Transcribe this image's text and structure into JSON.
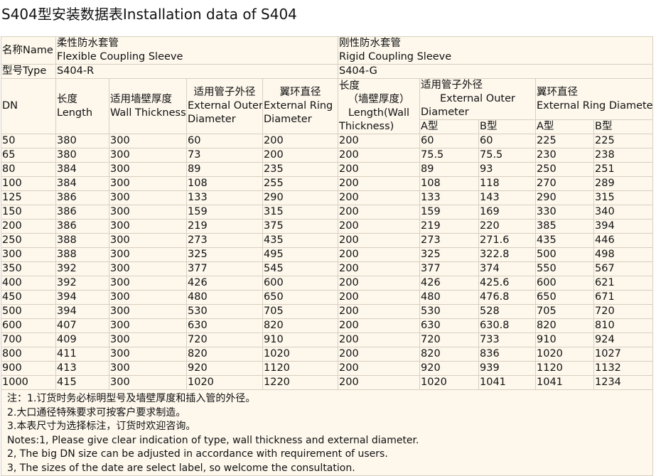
{
  "title": "S404型安装数据表Installation data of S404",
  "header": {
    "name_label": "名称Name",
    "flexible_cn": "柔性防水套管",
    "flexible_en": "Flexible Coupling Sleeve",
    "rigid_cn": "刚性防水套管",
    "rigid_en": "Rigid Coupling Sleeve",
    "type_label": "型号Type",
    "type_r": "S404-R",
    "type_g": "S404-G",
    "dn": "DN",
    "length_cn": "长度",
    "length_en": "Length",
    "wall_cn": "适用墙壁厚度",
    "wall_en": "Wall Thickness",
    "outer_cn": "适用管子外径",
    "outer_en1": "External Outer",
    "outer_en2": "Diameter",
    "ring_cn": "翼环直径",
    "ring_en1": "External Ring",
    "ring_en2": "Diameter",
    "g_length_1": "长度",
    "g_length_2": "（墙壁厚度）",
    "g_length_3": "Length(Wall",
    "g_length_4": "Thickness)",
    "g_outer_cn": "适用管子外径",
    "g_outer_en1": "External Outer",
    "g_outer_en2": "Diameter",
    "g_ring_cn": "翼环直径",
    "g_ring_en": "External Ring Diameter",
    "type_a": "A型",
    "type_b": "B型"
  },
  "rows": [
    [
      "50",
      "380",
      "300",
      "60",
      "200",
      "200",
      "60",
      "60",
      "225",
      "225"
    ],
    [
      "65",
      "380",
      "300",
      "73",
      "200",
      "200",
      "75.5",
      "75.5",
      "230",
      "238"
    ],
    [
      "80",
      "384",
      "300",
      "89",
      "235",
      "200",
      "89",
      "93",
      "250",
      "251"
    ],
    [
      "100",
      "384",
      "300",
      "108",
      "255",
      "200",
      "108",
      "118",
      "270",
      "289"
    ],
    [
      "125",
      "386",
      "300",
      "133",
      "290",
      "200",
      "133",
      "143",
      "290",
      "315"
    ],
    [
      "150",
      "386",
      "300",
      "159",
      "315",
      "200",
      "159",
      "169",
      "330",
      "340"
    ],
    [
      "200",
      "386",
      "300",
      "219",
      "375",
      "200",
      "219",
      "220",
      "385",
      "394"
    ],
    [
      "250",
      "388",
      "300",
      "273",
      "435",
      "200",
      "273",
      "271.6",
      "435",
      "446"
    ],
    [
      "300",
      "388",
      "300",
      "325",
      "495",
      "200",
      "325",
      "322.8",
      "500",
      "498"
    ],
    [
      "350",
      "392",
      "300",
      "377",
      "545",
      "200",
      "377",
      "374",
      "550",
      "567"
    ],
    [
      "400",
      "392",
      "300",
      "426",
      "600",
      "200",
      "426",
      "425.6",
      "600",
      "621"
    ],
    [
      "450",
      "394",
      "300",
      "480",
      "650",
      "200",
      "480",
      "476.8",
      "650",
      "671"
    ],
    [
      "500",
      "394",
      "300",
      "530",
      "705",
      "200",
      "530",
      "528",
      "705",
      "720"
    ],
    [
      "600",
      "407",
      "300",
      "630",
      "820",
      "200",
      "630",
      "630.8",
      "820",
      "810"
    ],
    [
      "700",
      "409",
      "300",
      "720",
      "910",
      "200",
      "720",
      "733",
      "910",
      "924"
    ],
    [
      "800",
      "411",
      "300",
      "820",
      "1020",
      "200",
      "820",
      "836",
      "1020",
      "1027"
    ],
    [
      "900",
      "413",
      "300",
      "920",
      "1120",
      "200",
      "920",
      "939",
      "1120",
      "1132"
    ],
    [
      "1000",
      "415",
      "300",
      "1020",
      "1220",
      "200",
      "1020",
      "1041",
      "1041",
      "1234"
    ]
  ],
  "notes": [
    "注：1.订货时务必标明型号及墙壁厚度和插入管的外径。",
    "2.大口通径特殊要求可按客户要求制造。",
    "3.本表尺寸为选择标注，订货时欢迎咨询。",
    "Notes:1, Please give clear indication of type, wall thickness and external diameter.",
    "2, The big DN size can be adjusted in accordance with requirement of users.",
    "3, The sizes of the date are select label, so welcome the consultation."
  ]
}
